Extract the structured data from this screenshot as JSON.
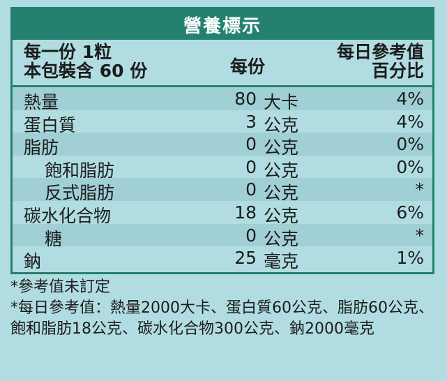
{
  "title": "營養標示",
  "header": {
    "serving_line1": "每一份 1粒",
    "serving_line2": "本包裝含 60 份",
    "per_serving": "每份",
    "dv_line1": "每日參考值",
    "dv_line2": "百分比"
  },
  "rows": [
    {
      "name": "熱量",
      "amount": "80",
      "unit": "大卡",
      "dv": "4%",
      "sub": false
    },
    {
      "name": "蛋白質",
      "amount": "3",
      "unit": "公克",
      "dv": "4%",
      "sub": false
    },
    {
      "name": "脂肪",
      "amount": "0",
      "unit": "公克",
      "dv": "0%",
      "sub": false
    },
    {
      "name": "飽和脂肪",
      "amount": "0",
      "unit": "公克",
      "dv": "0%",
      "sub": true
    },
    {
      "name": "反式脂肪",
      "amount": "0",
      "unit": "公克",
      "dv": "*",
      "sub": true
    },
    {
      "name": "碳水化合物",
      "amount": "18",
      "unit": "公克",
      "dv": "6%",
      "sub": false
    },
    {
      "name": "糖",
      "amount": "0",
      "unit": "公克",
      "dv": "*",
      "sub": true
    },
    {
      "name": "鈉",
      "amount": "25",
      "unit": "毫克",
      "dv": "1%",
      "sub": false
    }
  ],
  "footnotes": {
    "note1": "*參考值未訂定",
    "note2": "*每日參考值：熱量2000大卡、蛋白質60公克、脂肪60公克、飽和脂肪18公克、碳水化合物300公克、鈉2000毫克"
  },
  "colors": {
    "background": "#b1dde2",
    "accent": "#25816f",
    "row_shade": "#a0d0d5"
  }
}
